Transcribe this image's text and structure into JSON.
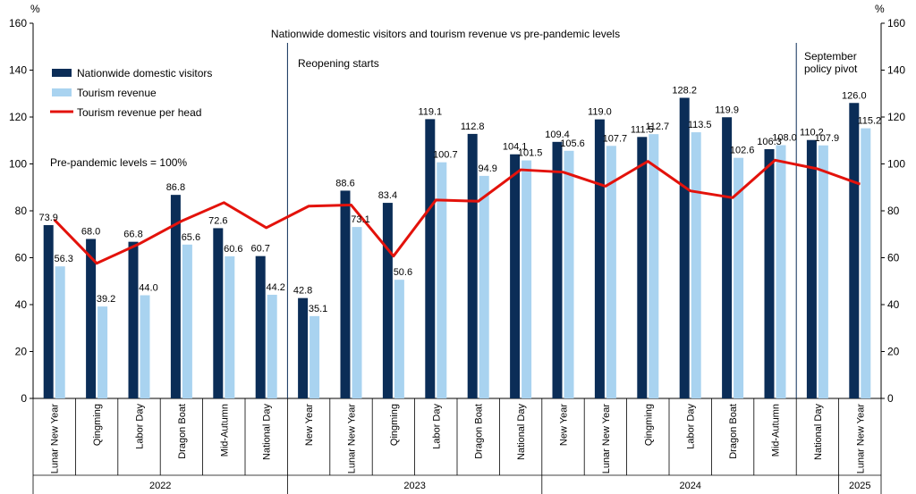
{
  "chart_data": {
    "type": "bar",
    "title": "Nationwide domestic visitors and tourism revenue vs pre-pandemic levels",
    "y_unit_left": "%",
    "y_unit_right": "%",
    "ylim": [
      0,
      160
    ],
    "yticks": [
      "0",
      "20",
      "40",
      "60",
      "80",
      "100",
      "120",
      "140",
      "160"
    ],
    "grid": false,
    "legend_position": "top-left",
    "categories": [
      "Lunar New Year",
      "Qingming",
      "Labor Day",
      "Dragon Boat",
      "Mid-Autumn",
      "National Day",
      "New Year",
      "Lunar New Year",
      "Qingming",
      "Labor Day",
      "Dragon Boat",
      "National Day",
      "New Year",
      "Lunar New Year",
      "Qingming",
      "Labor Day",
      "Dragon Boat",
      "Mid-Autumn",
      "National Day",
      "Lunar New Year"
    ],
    "category_labels": [
      "Lunar New Year",
      "Qingming",
      "Labor Day",
      "Dragon Boat",
      "Mid-Autumn",
      "National Day",
      "New Year",
      "Lunar New Year",
      "Qingming",
      "Labor Day",
      "Dragon Boat",
      "National Day",
      "New Year",
      "Lunar New Year",
      "Qingming",
      "Labor Day",
      "Dragon Boat",
      "Mid-Autumn",
      "National Day",
      "Lunar New Year"
    ],
    "year_groups": [
      {
        "label": "2022",
        "start": 0,
        "end": 5
      },
      {
        "label": "2023",
        "start": 6,
        "end": 11
      },
      {
        "label": "2024",
        "start": 12,
        "end": 18
      },
      {
        "label": "2025",
        "start": 19,
        "end": 19
      }
    ],
    "series": [
      {
        "name": "Nationwide domestic visitors",
        "kind": "bar",
        "color": "#0B2D57",
        "values": [
          73.9,
          68.0,
          66.8,
          86.8,
          72.6,
          60.7,
          42.8,
          88.6,
          83.4,
          119.1,
          112.8,
          104.1,
          109.4,
          119.0,
          111.5,
          128.2,
          119.9,
          106.3,
          110.2,
          126.0
        ],
        "labels": [
          "73.9",
          "68.0",
          "66.8",
          "86.8",
          "72.6",
          "60.7",
          "42.8",
          "88.6",
          "83.4",
          "119.1",
          "112.8",
          "104.1",
          "109.4",
          "119.0",
          "111.5",
          "128.2",
          "119.9",
          "106.3",
          "110.2",
          "126.0"
        ]
      },
      {
        "name": "Tourism revenue",
        "kind": "bar",
        "color": "#A9D3F0",
        "values": [
          56.3,
          39.2,
          44.0,
          65.6,
          60.6,
          44.2,
          35.1,
          73.1,
          50.6,
          100.7,
          94.9,
          101.5,
          105.6,
          107.7,
          112.7,
          113.5,
          102.6,
          108.0,
          107.9,
          115.2
        ],
        "labels": [
          "56.3",
          "39.2",
          "44.0",
          "65.6",
          "60.6",
          "44.2",
          "35.1",
          "73.1",
          "50.6",
          "100.7",
          "94.9",
          "101.5",
          "105.6",
          "107.7",
          "112.7",
          "113.5",
          "102.6",
          "108.0",
          "107.9",
          "115.2"
        ]
      },
      {
        "name": "Tourism revenue per head",
        "kind": "line",
        "color": "#E3120B",
        "values": [
          76.2,
          57.6,
          65.9,
          75.6,
          83.5,
          72.8,
          82.0,
          82.5,
          60.7,
          84.6,
          84.1,
          97.5,
          96.5,
          90.5,
          101.1,
          88.5,
          85.6,
          101.6,
          97.9,
          91.4
        ]
      }
    ],
    "annotations": {
      "pre_pandemic": "Pre-pandemic levels = 100%",
      "reopening": "Reopening starts",
      "september_line1": "September",
      "september_line2": "policy pivot"
    },
    "markers": [
      {
        "name": "reopening",
        "after_index": 5
      },
      {
        "name": "september",
        "after_index": 17
      }
    ]
  }
}
